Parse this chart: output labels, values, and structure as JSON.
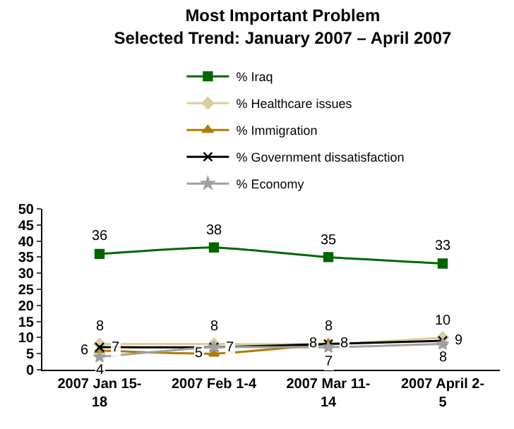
{
  "chart_data": {
    "type": "line",
    "title": "Most Important Problem\nSelected Trend: January 2007 – April 2007",
    "categories": [
      "2007 Jan 15-18",
      "2007 Feb 1-4",
      "2007 Mar 11-14",
      "2007 April 2-5"
    ],
    "series": [
      {
        "name": "% Iraq",
        "color": "#006600",
        "marker": "square",
        "values": [
          36,
          38,
          35,
          33
        ],
        "value_labels": [
          "36",
          "38",
          "35",
          "33"
        ]
      },
      {
        "name": "% Healthcare issues",
        "color": "#d8cf9c",
        "marker": "diamond",
        "values": [
          8,
          8,
          8,
          10
        ],
        "value_labels": [
          "8",
          "8",
          "8",
          "10"
        ]
      },
      {
        "name": "% Immigration",
        "color": "#b07a00",
        "marker": "triangle",
        "values": [
          6,
          5,
          8,
          null
        ],
        "value_labels": [
          "6",
          "5",
          "8",
          null
        ]
      },
      {
        "name": "% Government dissatisfaction",
        "color": "#000000",
        "marker": "cross",
        "values": [
          7,
          7,
          8,
          9
        ],
        "value_labels": [
          "7",
          "7",
          "8",
          "9"
        ]
      },
      {
        "name": "% Economy",
        "color": "#a0a0a0",
        "marker": "star",
        "values": [
          4,
          7,
          7,
          8
        ],
        "value_labels": [
          "4",
          null,
          "7",
          "8"
        ]
      }
    ],
    "ylim": [
      0,
      50
    ],
    "yticks": [
      0,
      5,
      10,
      15,
      20,
      25,
      30,
      35,
      40,
      45,
      50
    ],
    "grid": false,
    "legend": "top"
  }
}
